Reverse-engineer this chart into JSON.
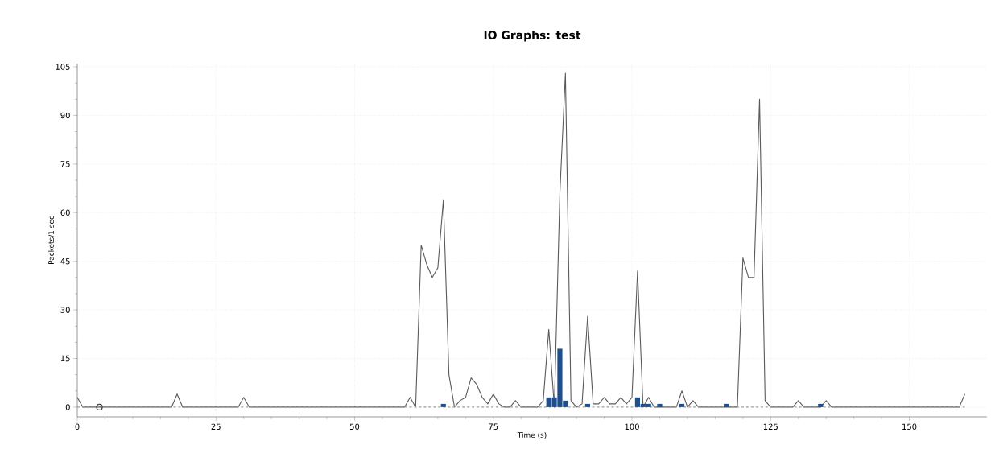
{
  "chart_data": {
    "type": "line",
    "title": "IO Graphs: test",
    "xlabel": "Time (s)",
    "ylabel": "Packets/1 sec",
    "xlim": [
      0,
      164
    ],
    "ylim": [
      -3,
      106
    ],
    "xticks": [
      0,
      25,
      50,
      75,
      100,
      125,
      150
    ],
    "yticks": [
      0,
      15,
      30,
      45,
      60,
      75,
      90,
      105
    ],
    "grid": true,
    "series": [
      {
        "color": "#5a5a5a",
        "x": [
          0,
          1,
          17,
          18,
          19,
          29,
          30,
          31,
          59,
          60,
          61,
          62,
          63,
          64,
          65,
          66,
          67,
          68,
          69,
          70,
          71,
          72,
          73,
          74,
          75,
          76,
          77,
          78,
          79,
          80,
          83,
          84,
          85,
          86,
          87,
          88,
          89,
          90,
          91,
          92,
          93,
          94,
          95,
          96,
          97,
          98,
          99,
          100,
          101,
          102,
          103,
          104,
          108,
          109,
          110,
          111,
          112,
          119,
          120,
          121,
          122,
          123,
          124,
          125,
          129,
          130,
          131,
          134,
          135,
          136,
          159,
          160
        ],
        "values": [
          3,
          0,
          0,
          4,
          0,
          0,
          3,
          0,
          0,
          3,
          0,
          50,
          44,
          40,
          43,
          64,
          10,
          0,
          2,
          3,
          9,
          7,
          3,
          1,
          4,
          1,
          0,
          0,
          2,
          0,
          0,
          2,
          24,
          0,
          66,
          103,
          2,
          0,
          1,
          28,
          1,
          1,
          3,
          1,
          1,
          3,
          1,
          3,
          42,
          0,
          3,
          0,
          0,
          5,
          0,
          2,
          0,
          0,
          46,
          40,
          40,
          95,
          2,
          0,
          0,
          2,
          0,
          0,
          2,
          0,
          0,
          4
        ]
      },
      {
        "type": "line",
        "color": "#a0a0a0",
        "line_style": "dashed",
        "x": [
          0,
          160
        ],
        "values": [
          0,
          0
        ]
      },
      {
        "type": "bar",
        "color": "#1f4e8c",
        "x": [
          66,
          85,
          86,
          87,
          88,
          92,
          101,
          102,
          103,
          105,
          109,
          117,
          134
        ],
        "values": [
          1,
          3,
          3,
          18,
          2,
          1,
          3,
          1,
          1,
          1,
          1,
          1,
          1
        ]
      },
      {
        "type": "scatter",
        "color": "#404040",
        "marker": "circle",
        "x": [
          4
        ],
        "values": [
          0
        ]
      }
    ]
  }
}
